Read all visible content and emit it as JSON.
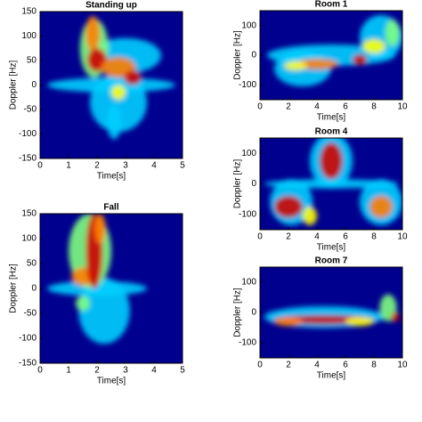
{
  "chart_data": [
    {
      "type": "spectrogram",
      "title": "Standing up",
      "x_label": "Time[s]",
      "y_label": "Doppler [Hz]",
      "xlim": [
        0,
        5
      ],
      "xticks": [
        0,
        1,
        2,
        3,
        4,
        5
      ],
      "ylim": [
        -150,
        150
      ],
      "yticks": [
        -150,
        -100,
        -50,
        0,
        50,
        100,
        150
      ]
    },
    {
      "type": "spectrogram",
      "title": "Fall",
      "x_label": "Time[s]",
      "y_label": "Doppler [Hz]",
      "xlim": [
        0,
        5
      ],
      "xticks": [
        0,
        1,
        2,
        3,
        4,
        5
      ],
      "ylim": [
        -150,
        150
      ],
      "yticks": [
        -150,
        -100,
        -50,
        0,
        50,
        100,
        150
      ]
    },
    {
      "type": "spectrogram",
      "title": "Room 1",
      "x_label": "Time[s]",
      "y_label": "Doppler [Hz]",
      "xlim": [
        0,
        10
      ],
      "xticks": [
        0,
        2,
        4,
        6,
        8,
        10
      ],
      "ylim": [
        -150,
        150
      ],
      "yticks": [
        -100,
        0,
        100
      ]
    },
    {
      "type": "spectrogram",
      "title": "Room 4",
      "x_label": "Time[s]",
      "y_label": "Doppler [Hz]",
      "xlim": [
        0,
        10
      ],
      "xticks": [
        0,
        2,
        4,
        6,
        8,
        10
      ],
      "ylim": [
        -150,
        150
      ],
      "yticks": [
        -100,
        0,
        100
      ]
    },
    {
      "type": "spectrogram",
      "title": "Room 7",
      "x_label": "Time[s]",
      "y_label": "Doppler [Hz]",
      "xlim": [
        0,
        10
      ],
      "xticks": [
        0,
        2,
        4,
        6,
        8,
        10
      ],
      "ylim": [
        -150,
        150
      ],
      "yticks": [
        -100,
        0,
        100
      ]
    }
  ]
}
